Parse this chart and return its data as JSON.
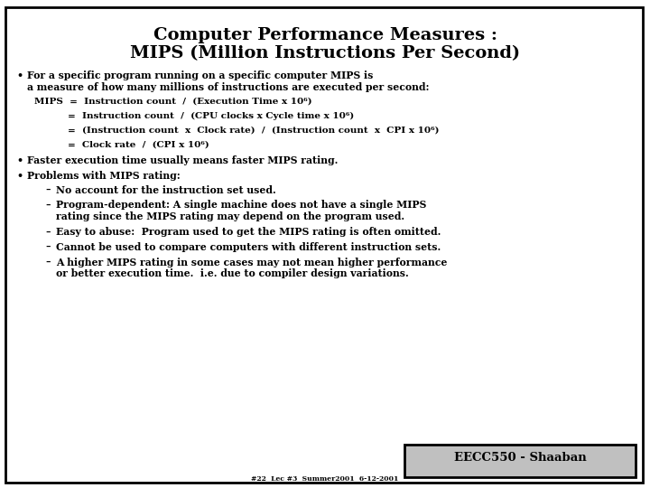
{
  "title_line1": "Computer Performance Measures :",
  "title_line2": "MIPS (Million Instructions Per Second)",
  "bg_color": "#ffffff",
  "border_color": "#000000",
  "text_color": "#000000",
  "title_color": "#000000",
  "footer_box_color": "#c0c0c0",
  "footer_text": "EECC550 - Shaaban",
  "footer_sub": "#22  Lec #3  Summer2001  6-12-2001",
  "title_fontsize": 14,
  "bullet_fontsize": 7.8,
  "formula_fontsize": 7.5,
  "footer_fontsize": 9.5,
  "footer_sub_fontsize": 5.5,
  "content": [
    {
      "type": "bullet",
      "text": "For a specific program running on a specific computer MIPS is\na measure of how many millions of instructions are executed per second:",
      "lines": 2
    },
    {
      "type": "formula",
      "label": "MIPS",
      "text": "=  Instruction count  /  (Execution Time x 10⁶)",
      "lines": 1
    },
    {
      "type": "formula",
      "label": "",
      "text": "=  Instruction count  /  (CPU clocks x Cycle time x 10⁶)",
      "lines": 1
    },
    {
      "type": "formula",
      "label": "",
      "text": "=  (Instruction count  x  Clock rate)  /  (Instruction count  x  CPI x 10⁶)",
      "lines": 1
    },
    {
      "type": "formula",
      "label": "",
      "text": "=  Clock rate  /  (CPI x 10⁶)",
      "lines": 1
    },
    {
      "type": "bullet",
      "text": "Faster execution time usually means faster MIPS rating.",
      "lines": 1
    },
    {
      "type": "bullet",
      "text": "Problems with MIPS rating:",
      "lines": 1
    },
    {
      "type": "dash",
      "text": "No account for the instruction set used.",
      "lines": 1
    },
    {
      "type": "dash",
      "text": "Program-dependent: A single machine does not have a single MIPS\nrating since the MIPS rating may depend on the program used.",
      "lines": 2
    },
    {
      "type": "dash",
      "text": "Easy to abuse:  Program used to get the MIPS rating is often omitted.",
      "lines": 1
    },
    {
      "type": "dash",
      "text": "Cannot be used to compare computers with different instruction sets.",
      "lines": 1
    },
    {
      "type": "dash",
      "text": "A higher MIPS rating in some cases may not mean higher performance\nor better execution time.  i.e. due to compiler design variations.",
      "lines": 2
    }
  ]
}
